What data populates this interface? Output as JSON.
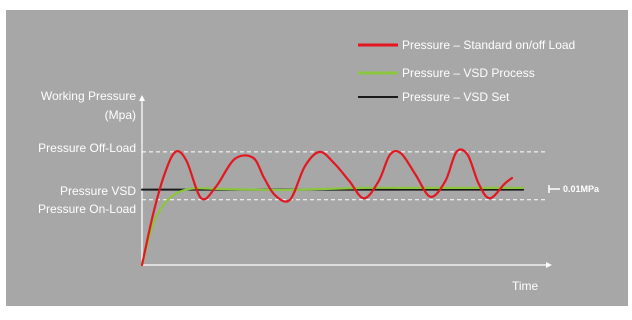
{
  "colors": {
    "background": "#a7a7a7",
    "axis": "#ffffff",
    "standard": "#e3171f",
    "vsd_process": "#8cc63f",
    "vsd_set": "#1a1a1a",
    "dashed": "#ffffff"
  },
  "chart_data": {
    "type": "line",
    "title": "",
    "ylabel": "Working Pressure (Mpa)",
    "ylabel_line1": "Working Pressure",
    "ylabel_line2": "(Mpa)",
    "xlabel": "Time",
    "ylim": [
      0,
      1
    ],
    "xlim": [
      0,
      1
    ],
    "grid": false,
    "legend_position": "top-right",
    "levels": {
      "off_load": {
        "label": "Pressure Off-Load",
        "value": 0.78,
        "style": "dashed"
      },
      "vsd": {
        "label": "Pressure VSD",
        "value": 0.52,
        "style": "solid"
      },
      "on_load": {
        "label": "Pressure On-Load",
        "value": 0.45,
        "style": "dashed"
      }
    },
    "band_annotation": "0.01MPa",
    "series": [
      {
        "name": "Pressure – Standard on/off Load",
        "color": "#e3171f",
        "x": [
          0.0,
          0.03,
          0.06,
          0.09,
          0.12,
          0.16,
          0.2,
          0.25,
          0.3,
          0.33,
          0.36,
          0.4,
          0.44,
          0.48,
          0.52,
          0.56,
          0.6,
          0.64,
          0.67,
          0.7,
          0.74,
          0.78,
          0.82,
          0.85,
          0.88,
          0.91,
          0.94,
          0.98,
          1.0
        ],
        "y": [
          0.0,
          0.35,
          0.62,
          0.78,
          0.72,
          0.46,
          0.54,
          0.73,
          0.74,
          0.6,
          0.48,
          0.45,
          0.68,
          0.78,
          0.7,
          0.58,
          0.46,
          0.58,
          0.76,
          0.77,
          0.62,
          0.47,
          0.58,
          0.78,
          0.76,
          0.56,
          0.46,
          0.56,
          0.6
        ]
      },
      {
        "name": "Pressure – VSD Process",
        "color": "#8cc63f",
        "x": [
          0.0,
          0.03,
          0.06,
          0.09,
          0.12,
          0.15,
          0.2,
          0.3,
          0.4,
          0.5,
          0.6,
          0.7,
          0.8,
          0.9,
          1.0,
          1.03
        ],
        "y": [
          0.0,
          0.28,
          0.42,
          0.49,
          0.52,
          0.53,
          0.525,
          0.52,
          0.518,
          0.525,
          0.532,
          0.532,
          0.532,
          0.532,
          0.532,
          0.532
        ]
      },
      {
        "name": "Pressure – VSD Set",
        "color": "#1a1a1a",
        "x": [
          0.0,
          1.03
        ],
        "y": [
          0.52,
          0.52
        ]
      }
    ]
  }
}
